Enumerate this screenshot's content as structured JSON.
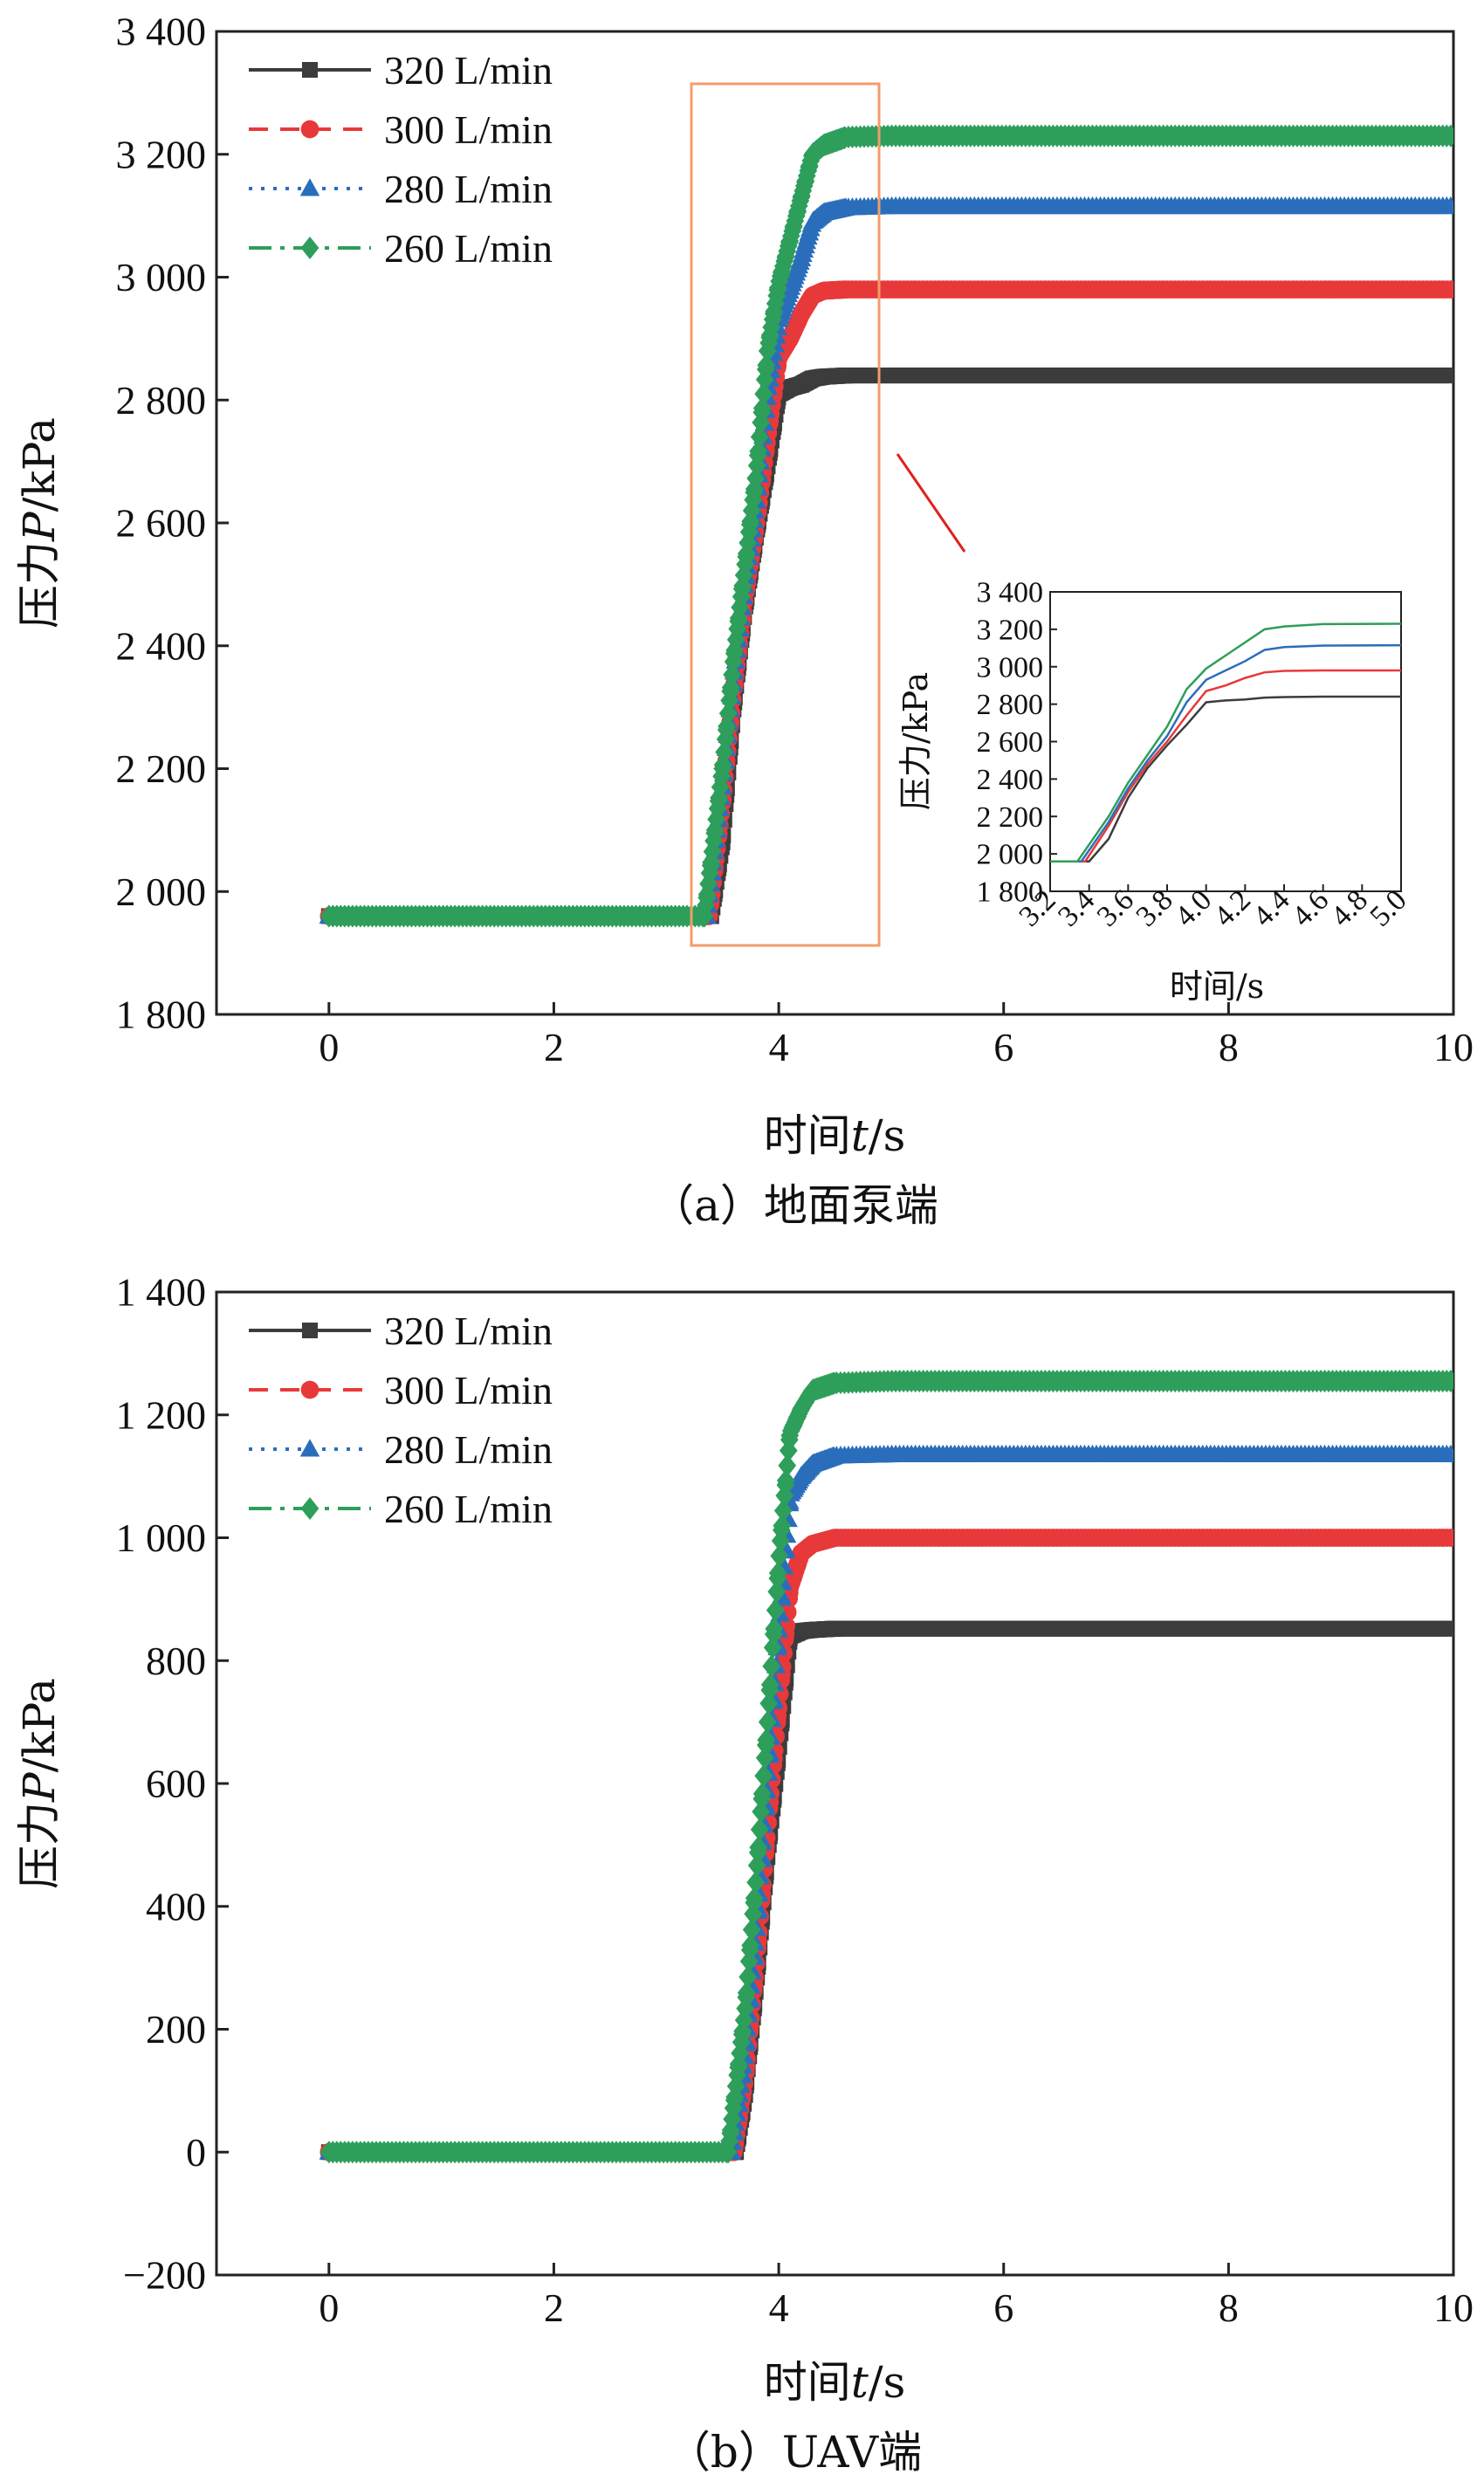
{
  "chart_data": [
    {
      "type": "line",
      "caption": "（a）地面泵端",
      "xlabel_prefix": "时间",
      "xlabel_var": "t",
      "xlabel_unit": "/s",
      "ylabel_prefix": "压力",
      "ylabel_var": "P",
      "ylabel_unit": "/kPa",
      "xlim": [
        -1,
        10
      ],
      "ylim": [
        1800,
        3400
      ],
      "xticks": [
        0,
        2,
        4,
        6,
        8,
        10
      ],
      "yticks": [
        1800,
        2000,
        2200,
        2400,
        2600,
        2800,
        3000,
        3200,
        3400
      ],
      "ytick_labels": [
        "1 800",
        "2 000",
        "2 200",
        "2 400",
        "2 600",
        "2 800",
        "3 000",
        "3 200",
        "3 400"
      ],
      "legend_position": "top-left",
      "series": [
        {
          "name": "320 L/min",
          "color": "#3c3c3c",
          "marker": "square",
          "x": [
            0,
            3.4,
            3.5,
            3.6,
            3.7,
            3.8,
            3.9,
            4.0,
            4.1,
            4.2,
            4.3,
            4.4,
            4.6,
            5.0,
            10
          ],
          "y": [
            1960,
            1960,
            2080,
            2300,
            2460,
            2580,
            2690,
            2810,
            2820,
            2825,
            2835,
            2838,
            2840,
            2840,
            2840
          ]
        },
        {
          "name": "300 L/min",
          "color": "#e8393a",
          "marker": "circle",
          "x": [
            0,
            3.38,
            3.5,
            3.6,
            3.7,
            3.8,
            3.9,
            4.0,
            4.1,
            4.2,
            4.3,
            4.4,
            4.6,
            5.0,
            10
          ],
          "y": [
            1960,
            1960,
            2150,
            2330,
            2480,
            2600,
            2740,
            2870,
            2900,
            2940,
            2970,
            2978,
            2980,
            2980,
            2980
          ]
        },
        {
          "name": "280 L/min",
          "color": "#2a6ebb",
          "marker": "triangle",
          "x": [
            0,
            3.36,
            3.5,
            3.6,
            3.7,
            3.8,
            3.9,
            4.0,
            4.1,
            4.2,
            4.3,
            4.4,
            4.6,
            5.0,
            10
          ],
          "y": [
            1960,
            1960,
            2170,
            2350,
            2500,
            2630,
            2810,
            2930,
            2980,
            3030,
            3090,
            3105,
            3113,
            3115,
            3115
          ]
        },
        {
          "name": "260 L/min",
          "color": "#2e9e5b",
          "marker": "diamond",
          "x": [
            0,
            3.34,
            3.5,
            3.6,
            3.7,
            3.8,
            3.9,
            4.0,
            4.1,
            4.2,
            4.3,
            4.4,
            4.6,
            5.0,
            10
          ],
          "y": [
            1960,
            1960,
            2200,
            2380,
            2530,
            2680,
            2880,
            2990,
            3060,
            3130,
            3200,
            3215,
            3228,
            3230,
            3230
          ]
        }
      ],
      "inset": {
        "xlabel": "时间/s",
        "ylabel": "压力/kPa",
        "xlim": [
          3.2,
          5.0
        ],
        "ylim": [
          1800,
          3400
        ],
        "xtick_labels": [
          "3.2",
          "3.4",
          "3.6",
          "3.8",
          "4.0",
          "4.2",
          "4.4",
          "4.6",
          "4.8",
          "5.0"
        ],
        "ytick_labels": [
          "1 800",
          "2 000",
          "2 200",
          "2 400",
          "2 600",
          "2 800",
          "3 000",
          "3 200",
          "3 400"
        ]
      }
    },
    {
      "type": "line",
      "caption": "（b）UAV端",
      "xlabel_prefix": "时间",
      "xlabel_var": "t",
      "xlabel_unit": "/s",
      "ylabel_prefix": "压力",
      "ylabel_var": "P",
      "ylabel_unit": "/kPa",
      "xlim": [
        -1,
        10
      ],
      "ylim": [
        -200,
        1400
      ],
      "xticks": [
        0,
        2,
        4,
        6,
        8,
        10
      ],
      "yticks": [
        -200,
        0,
        200,
        400,
        600,
        800,
        1000,
        1200,
        1400
      ],
      "ytick_labels": [
        "−200",
        "0",
        "200",
        "400",
        "600",
        "800",
        "1 000",
        "1 200",
        "1 400"
      ],
      "legend_position": "top-left",
      "series": [
        {
          "name": "320 L/min",
          "color": "#3c3c3c",
          "marker": "square",
          "x": [
            0,
            3.62,
            3.7,
            3.8,
            3.9,
            4.0,
            4.1,
            4.2,
            4.3,
            4.5,
            5.0,
            10
          ],
          "y": [
            0,
            0,
            90,
            270,
            480,
            650,
            840,
            848,
            850,
            852,
            852,
            852
          ]
        },
        {
          "name": "300 L/min",
          "color": "#e8393a",
          "marker": "circle",
          "x": [
            0,
            3.6,
            3.7,
            3.8,
            3.9,
            4.0,
            4.1,
            4.2,
            4.3,
            4.5,
            5.0,
            10
          ],
          "y": [
            0,
            0,
            120,
            310,
            530,
            730,
            920,
            975,
            990,
            1000,
            1000,
            1000
          ]
        },
        {
          "name": "280 L/min",
          "color": "#2a6ebb",
          "marker": "triangle",
          "x": [
            0,
            3.58,
            3.7,
            3.8,
            3.9,
            4.0,
            4.1,
            4.2,
            4.3,
            4.5,
            5.0,
            10
          ],
          "y": [
            0,
            0,
            160,
            360,
            600,
            850,
            1070,
            1100,
            1120,
            1133,
            1135,
            1135
          ]
        },
        {
          "name": "260 L/min",
          "color": "#2e9e5b",
          "marker": "diamond",
          "x": [
            0,
            3.55,
            3.7,
            3.8,
            3.9,
            4.0,
            4.1,
            4.2,
            4.3,
            4.5,
            5.0,
            10
          ],
          "y": [
            0,
            0,
            230,
            450,
            700,
            960,
            1170,
            1210,
            1240,
            1252,
            1255,
            1255
          ]
        }
      ]
    }
  ]
}
